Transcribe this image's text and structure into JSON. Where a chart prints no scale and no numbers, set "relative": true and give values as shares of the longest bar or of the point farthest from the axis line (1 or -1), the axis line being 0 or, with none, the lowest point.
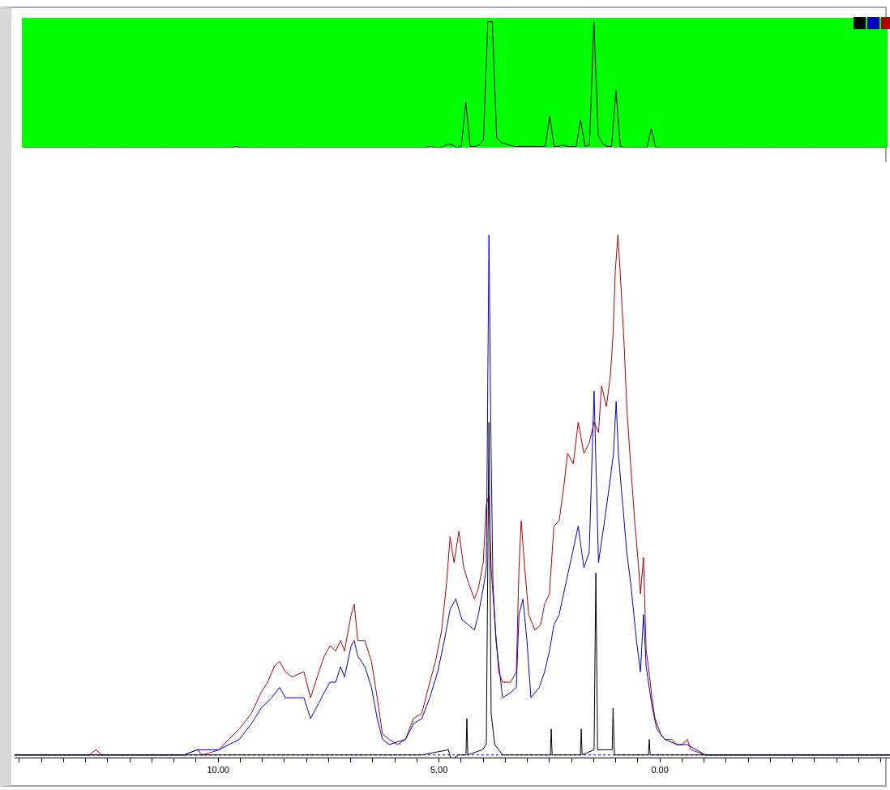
{
  "chart_data": [
    {
      "type": "line",
      "relative": true,
      "tick_labels": false,
      "categories": [
        null,
        null,
        null,
        null,
        null,
        null,
        null,
        null,
        null,
        null,
        null,
        null,
        null,
        null,
        null,
        null,
        null,
        null,
        null,
        null,
        null,
        null,
        null,
        null,
        null,
        null,
        null,
        null,
        null,
        null,
        null,
        null,
        null,
        null,
        null,
        null,
        null,
        null,
        null,
        null,
        null,
        null,
        null,
        null,
        null,
        null,
        null,
        null,
        null,
        null,
        null,
        null,
        null,
        null,
        null,
        null,
        null,
        null,
        null,
        null,
        null,
        null,
        null,
        null,
        null,
        null,
        null,
        null,
        null,
        null,
        null,
        null,
        null,
        null,
        null,
        null,
        null,
        null,
        null,
        null,
        null,
        null,
        null,
        null,
        null,
        null,
        null,
        null,
        null,
        null,
        null,
        null,
        null,
        null,
        null,
        null,
        null,
        null,
        null,
        null,
        null,
        null,
        null,
        null,
        null,
        null,
        null,
        null,
        null,
        null,
        null,
        null,
        null,
        null,
        null,
        null,
        null,
        null,
        null,
        null,
        null,
        null,
        null,
        null,
        null,
        null,
        null,
        null,
        null,
        null,
        null,
        null,
        null,
        null,
        null,
        null,
        null,
        null,
        null,
        null,
        null,
        null,
        null,
        null,
        null,
        null,
        null,
        null,
        null,
        null,
        null,
        null,
        null,
        null,
        null,
        null,
        null,
        null,
        null,
        null,
        null,
        null,
        null,
        null,
        null,
        null,
        null,
        null,
        null,
        null,
        null,
        null,
        null,
        null,
        null,
        null,
        null,
        null,
        null,
        null,
        null,
        null,
        null,
        null,
        null,
        null,
        null,
        null,
        null,
        null,
        null,
        null,
        null,
        null,
        null,
        null
      ],
      "series": [
        {
          "color": "#000000",
          "values": [
            0,
            0,
            0,
            0,
            0,
            0,
            0,
            0,
            0,
            0,
            0,
            0,
            0,
            0,
            0,
            0,
            0,
            0,
            0,
            0,
            0,
            0,
            0,
            0,
            0,
            0,
            0,
            0,
            0,
            0,
            0,
            0,
            0,
            0,
            0,
            0,
            0,
            0,
            0,
            0,
            0,
            0,
            0,
            0,
            0,
            0,
            0,
            0,
            0.01,
            0,
            0,
            0,
            0,
            0,
            0,
            0,
            0,
            0,
            0,
            0,
            0,
            0,
            0,
            0,
            0,
            0,
            0,
            0,
            0,
            0,
            0,
            0,
            0,
            0,
            0,
            0,
            0,
            0,
            0,
            0,
            0,
            0,
            0,
            0,
            0,
            0,
            0,
            0,
            0,
            0,
            0,
            0,
            0.01,
            0,
            0,
            0.01,
            0.03,
            0.02,
            0,
            0.01,
            0.36,
            0.01,
            0.01,
            0.02,
            0.06,
            1,
            1,
            0.08,
            0.04,
            0.03,
            0.02,
            0.01,
            0.01,
            0.01,
            0.01,
            0.01,
            0.01,
            0.01,
            0.01,
            0.25,
            0.01,
            0.01,
            0.02,
            0.01,
            0.01,
            0.01,
            0.22,
            0.01,
            0.02,
            1,
            0.1,
            0.03,
            0.01,
            0.01,
            0.46,
            0.01,
            0,
            0,
            0,
            0,
            0,
            0,
            0.15,
            0,
            0,
            0,
            0,
            0,
            0,
            0,
            0,
            0,
            0,
            0,
            0,
            0,
            0,
            0,
            0,
            0,
            0,
            0,
            0,
            0,
            0,
            0,
            0,
            0,
            0,
            0,
            0,
            0,
            0,
            0,
            0,
            0,
            0,
            0,
            0,
            0,
            0,
            0,
            0,
            0,
            0,
            0,
            0,
            0,
            0,
            0,
            0,
            0,
            0,
            0,
            0,
            0
          ]
        }
      ]
    },
    {
      "type": "line",
      "relative": true,
      "xlim": [
        14.61,
        -5.21
      ],
      "tick_labels": "x",
      "xticks": [
        {
          "value": 14.5,
          "label": null
        },
        {
          "value": 14,
          "label": null
        },
        {
          "value": 13.5,
          "label": null
        },
        {
          "value": 13,
          "label": null
        },
        {
          "value": 12.5,
          "label": null
        },
        {
          "value": 12,
          "label": null
        },
        {
          "value": 11.5,
          "label": null
        },
        {
          "value": 11,
          "label": null
        },
        {
          "value": 10.5,
          "label": null
        },
        {
          "value": 10,
          "label": "10.00"
        },
        {
          "value": 9.5,
          "label": null
        },
        {
          "value": 9,
          "label": null
        },
        {
          "value": 8.5,
          "label": null
        },
        {
          "value": 8,
          "label": null
        },
        {
          "value": 7.5,
          "label": null
        },
        {
          "value": 7,
          "label": null
        },
        {
          "value": 6.5,
          "label": null
        },
        {
          "value": 6,
          "label": null
        },
        {
          "value": 5.5,
          "label": null
        },
        {
          "value": 5,
          "label": "5.00"
        },
        {
          "value": 4.5,
          "label": null
        },
        {
          "value": 4,
          "label": null
        },
        {
          "value": 3.5,
          "label": null
        },
        {
          "value": 3,
          "label": null
        },
        {
          "value": 2.5,
          "label": null
        },
        {
          "value": 2,
          "label": null
        },
        {
          "value": 1.5,
          "label": null
        },
        {
          "value": 1,
          "label": null
        },
        {
          "value": 0.5,
          "label": null
        },
        {
          "value": 0,
          "label": "0.00"
        },
        {
          "value": -0.5,
          "label": null
        },
        {
          "value": -1,
          "label": null
        },
        {
          "value": -1.5,
          "label": null
        },
        {
          "value": -2,
          "label": null
        },
        {
          "value": -2.5,
          "label": null
        },
        {
          "value": -3,
          "label": null
        },
        {
          "value": -3.5,
          "label": null
        },
        {
          "value": -4,
          "label": null
        },
        {
          "value": -4.5,
          "label": null
        },
        {
          "value": -5,
          "label": null
        }
      ],
      "ref_lines": [
        {
          "axis": "y",
          "value": 0,
          "color": "#0000c0",
          "line_style": "dotted"
        }
      ],
      "series": [
        {
          "color": "#b00000",
          "x": [
            14.61,
            12.92,
            12.77,
            12.64,
            10.77,
            10.48,
            10.35,
            9.98,
            9.76,
            9.52,
            9.25,
            9.03,
            8.88,
            8.73,
            8.61,
            8.48,
            8.33,
            8.06,
            7.91,
            7.72,
            7.6,
            7.47,
            7.34,
            7.23,
            7.14,
            6.99,
            6.92,
            6.84,
            6.68,
            6.53,
            6.4,
            6.28,
            6.13,
            5.94,
            5.76,
            5.58,
            5.39,
            5.21,
            5.08,
            4.94,
            4.83,
            4.75,
            4.66,
            4.55,
            4.44,
            4.33,
            4.2,
            4.11,
            4.0,
            3.93,
            3.87,
            3.82,
            3.74,
            3.65,
            3.56,
            3.38,
            3.25,
            3.19,
            3.14,
            3.06,
            2.97,
            2.83,
            2.7,
            2.61,
            2.5,
            2.4,
            2.28,
            2.17,
            2.09,
            1.96,
            1.85,
            1.72,
            1.6,
            1.49,
            1.39,
            1.32,
            1.21,
            1.12,
            1.06,
            1.01,
            0.95,
            0.9,
            0.81,
            0.75,
            0.68,
            0.57,
            0.48,
            0.44,
            0.37,
            0.31,
            0.26,
            0.18,
            0.11,
            -0.02,
            -0.11,
            -0.26,
            -0.39,
            -0.51,
            -0.62,
            -0.7,
            -1.03,
            -5.21
          ],
          "values": [
            0,
            0,
            0.01,
            0,
            0,
            0.01,
            0,
            0.01,
            0.03,
            0.05,
            0.08,
            0.12,
            0.14,
            0.17,
            0.18,
            0.16,
            0.15,
            0.16,
            0.11,
            0.16,
            0.19,
            0.21,
            0.2,
            0.22,
            0.2,
            0.27,
            0.29,
            0.22,
            0.22,
            0.18,
            0.11,
            0.04,
            0.03,
            0.02,
            0.03,
            0.07,
            0.08,
            0.14,
            0.18,
            0.24,
            0.33,
            0.42,
            0.37,
            0.43,
            0.36,
            0.33,
            0.3,
            0.32,
            0.37,
            0.48,
            0.5,
            0.36,
            0.26,
            0.16,
            0.14,
            0.14,
            0.16,
            0.36,
            0.45,
            0.36,
            0.27,
            0.24,
            0.25,
            0.29,
            0.31,
            0.44,
            0.45,
            0.52,
            0.58,
            0.56,
            0.64,
            0.58,
            0.6,
            0.64,
            0.62,
            0.71,
            0.67,
            0.73,
            0.81,
            0.93,
            1,
            0.93,
            0.79,
            0.67,
            0.58,
            0.45,
            0.36,
            0.31,
            0.38,
            0.2,
            0.17,
            0.11,
            0.07,
            0.04,
            0.03,
            0.03,
            0.02,
            0.02,
            0.03,
            0.01,
            0,
            0
          ]
        },
        {
          "color": "#0000c0",
          "x": [
            14.61,
            10.77,
            10.48,
            9.98,
            9.76,
            9.52,
            9.25,
            9.03,
            8.79,
            8.61,
            8.48,
            8.24,
            8.06,
            7.91,
            7.72,
            7.6,
            7.47,
            7.34,
            7.23,
            7.14,
            6.99,
            6.92,
            6.84,
            6.68,
            6.53,
            6.4,
            6.28,
            6.13,
            5.76,
            5.58,
            5.39,
            5.21,
            5.03,
            4.88,
            4.75,
            4.62,
            4.48,
            4.33,
            4.2,
            4.11,
            3.98,
            3.93,
            3.87,
            3.83,
            3.78,
            3.71,
            3.56,
            3.38,
            3.25,
            3.19,
            3.1,
            3.01,
            2.92,
            2.73,
            2.61,
            2.5,
            2.4,
            2.28,
            2.13,
            2.0,
            1.85,
            1.72,
            1.6,
            1.49,
            1.39,
            1.27,
            1.14,
            1.05,
            0.99,
            0.94,
            0.84,
            0.75,
            0.66,
            0.53,
            0.44,
            0.37,
            0.31,
            0.26,
            0.17,
            0.07,
            -0.11,
            -0.39,
            -0.62,
            -1.03,
            -5.21
          ],
          "values": [
            0,
            0,
            0.01,
            0.01,
            0.02,
            0.03,
            0.06,
            0.09,
            0.11,
            0.13,
            0.11,
            0.11,
            0.11,
            0.07,
            0.1,
            0.12,
            0.14,
            0.14,
            0.17,
            0.15,
            0.21,
            0.22,
            0.19,
            0.17,
            0.13,
            0.07,
            0.03,
            0.02,
            0.03,
            0.06,
            0.07,
            0.11,
            0.16,
            0.22,
            0.28,
            0.3,
            0.26,
            0.25,
            0.24,
            0.27,
            0.33,
            0.36,
            1,
            0.64,
            0.33,
            0.22,
            0.11,
            0.12,
            0.13,
            0.27,
            0.3,
            0.22,
            0.11,
            0.13,
            0.16,
            0.2,
            0.25,
            0.27,
            0.33,
            0.38,
            0.44,
            0.36,
            0.39,
            0.7,
            0.37,
            0.44,
            0.52,
            0.58,
            0.68,
            0.58,
            0.48,
            0.39,
            0.33,
            0.22,
            0.16,
            0.27,
            0.17,
            0.14,
            0.09,
            0.05,
            0.03,
            0.02,
            0.02,
            0,
            0
          ]
        },
        {
          "color": "#000000",
          "x": [
            14.61,
            5.39,
            4.79,
            4.72,
            4.57,
            4.39,
            4.37,
            4.35,
            4.02,
            3.93,
            3.87,
            3.82,
            3.74,
            3.56,
            2.48,
            2.46,
            2.44,
            1.8,
            1.78,
            1.76,
            1.49,
            1.45,
            1.41,
            1.08,
            1.06,
            1.03,
            0.26,
            0.24,
            0.22,
            -5.21
          ],
          "values": [
            0,
            0,
            0.01,
            -0.01,
            0,
            0,
            0.07,
            0,
            0.01,
            0.02,
            0.64,
            0.08,
            0.02,
            0,
            0,
            0.05,
            0,
            0,
            0.05,
            0,
            0.01,
            0.35,
            0.01,
            0.01,
            0.09,
            0,
            0,
            0.03,
            0,
            0
          ]
        }
      ]
    }
  ]
}
